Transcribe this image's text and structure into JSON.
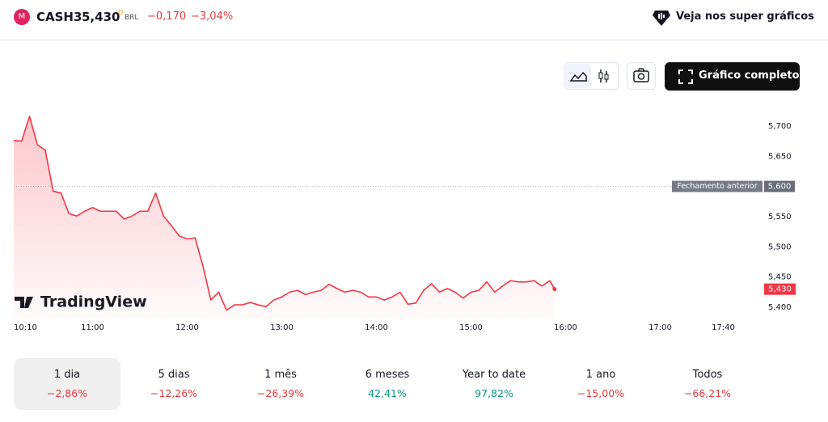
{
  "header": {
    "symbol": "CASH3",
    "price": "5,430",
    "price_flag": "D",
    "currency": "BRL",
    "change": "−0,170",
    "change_pct": "−3,04%",
    "cta": "Veja nos super gráficos"
  },
  "toolbar": {
    "full_chart": "Gráfico completo"
  },
  "chart_data": {
    "type": "line",
    "watermark": "TradingView",
    "color": "#f23645",
    "grid": false,
    "x": [
      "10:10",
      "10:15",
      "10:20",
      "10:25",
      "10:30",
      "10:35",
      "10:40",
      "10:45",
      "10:50",
      "10:55",
      "11:00",
      "11:05",
      "11:10",
      "11:15",
      "11:20",
      "11:25",
      "11:30",
      "11:35",
      "11:40",
      "11:45",
      "11:50",
      "11:55",
      "12:00",
      "12:05",
      "12:10",
      "12:15",
      "12:20",
      "12:25",
      "12:30",
      "12:35",
      "12:40",
      "12:45",
      "12:50",
      "12:55",
      "13:00",
      "13:05",
      "13:10",
      "13:15",
      "13:20",
      "13:25",
      "13:30",
      "13:35",
      "13:40",
      "13:45",
      "13:50",
      "13:55",
      "14:00",
      "14:05",
      "14:10",
      "14:15",
      "14:20",
      "14:25",
      "14:30",
      "14:35",
      "14:40",
      "14:45",
      "14:50",
      "14:55",
      "15:00",
      "15:05",
      "15:10",
      "15:15",
      "15:20",
      "15:25",
      "15:30",
      "15:35",
      "15:40",
      "15:45",
      "15:50",
      "15:53"
    ],
    "values": [
      5.676,
      5.675,
      5.716,
      5.669,
      5.66,
      5.592,
      5.589,
      5.555,
      5.551,
      5.559,
      5.565,
      5.559,
      5.559,
      5.559,
      5.546,
      5.551,
      5.559,
      5.559,
      5.589,
      5.551,
      5.535,
      5.518,
      5.513,
      5.515,
      5.468,
      5.412,
      5.425,
      5.395,
      5.404,
      5.404,
      5.408,
      5.404,
      5.401,
      5.412,
      5.417,
      5.425,
      5.428,
      5.421,
      5.425,
      5.428,
      5.438,
      5.431,
      5.425,
      5.428,
      5.425,
      5.417,
      5.417,
      5.412,
      5.417,
      5.425,
      5.405,
      5.407,
      5.428,
      5.439,
      5.425,
      5.431,
      5.425,
      5.415,
      5.425,
      5.428,
      5.442,
      5.425,
      5.435,
      5.444,
      5.442,
      5.442,
      5.444,
      5.435,
      5.444,
      5.43
    ],
    "xlim": [
      "10:10",
      "17:40"
    ],
    "xticks": [
      "10:10",
      "11:00",
      "12:00",
      "13:00",
      "14:00",
      "15:00",
      "16:00",
      "17:00",
      "17:40"
    ],
    "ylim": [
      5.38,
      5.74
    ],
    "yticks": [
      {
        "value": 5.4,
        "label": "5,400"
      },
      {
        "value": 5.45,
        "label": "5,450"
      },
      {
        "value": 5.5,
        "label": "5,500"
      },
      {
        "value": 5.55,
        "label": "5,550"
      },
      {
        "value": 5.6,
        "label": "5,600"
      },
      {
        "value": 5.65,
        "label": "5,650"
      },
      {
        "value": 5.7,
        "label": "5,700"
      }
    ],
    "reference": {
      "name": "Fechamento anterior",
      "value": 5.6,
      "label": "5,600"
    },
    "last_price": {
      "value": 5.43,
      "label": "5,430"
    }
  },
  "ranges": [
    {
      "label": "1 dia",
      "change": "−2,86%",
      "selected": true
    },
    {
      "label": "5 dias",
      "change": "−12,26%"
    },
    {
      "label": "1 mês",
      "change": "−26,39%"
    },
    {
      "label": "6 meses",
      "change": "42,41%"
    },
    {
      "label": "Year to date",
      "change": "97,82%"
    },
    {
      "label": "1 ano",
      "change": "−15,00%"
    },
    {
      "label": "Todos",
      "change": "−66,21%"
    }
  ]
}
